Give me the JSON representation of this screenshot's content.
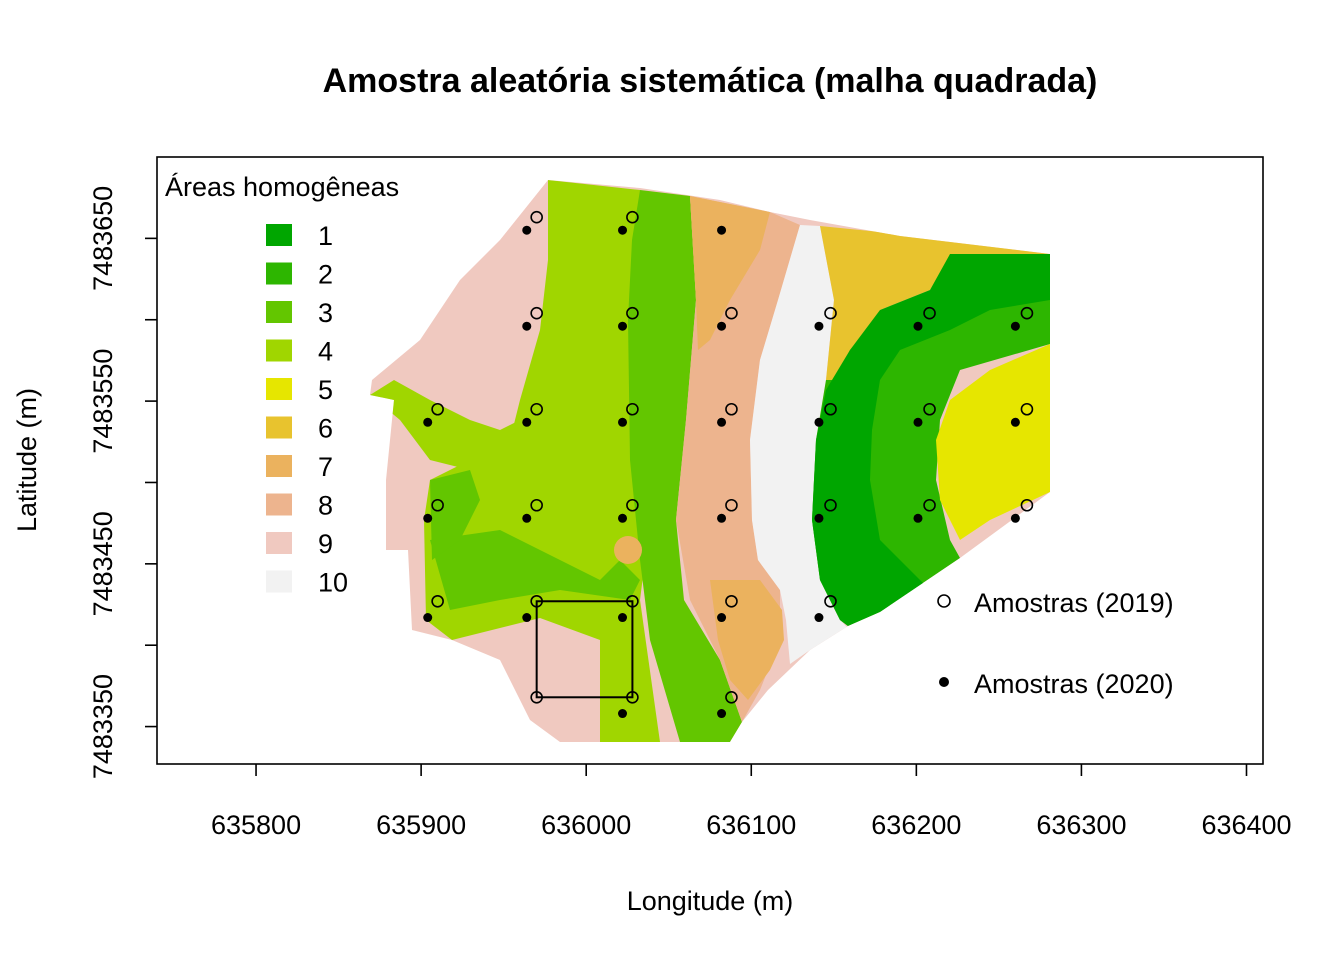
{
  "chart_data": {
    "type": "map",
    "title": "Amostra aleatória sistemática (malha quadrada)",
    "xlabel": "Longitude (m)",
    "ylabel": "Latitude (m)",
    "xlim": [
      635740,
      636410
    ],
    "ylim": [
      7483327,
      7483700
    ],
    "x_ticks": [
      635800,
      635900,
      636000,
      636100,
      636200,
      636300,
      636400
    ],
    "x_tick_labels": [
      "635800",
      "635900",
      "636000",
      "636100",
      "636200",
      "636300",
      "636400"
    ],
    "y_ticks": [
      7483350,
      7483400,
      7483450,
      7483500,
      7483550,
      7483600,
      7483650
    ],
    "y_tick_labels": [
      "7483350",
      "7483450",
      "7483550",
      "7483650"
    ],
    "zones_legend": {
      "title": "Áreas homogêneas",
      "entries": [
        {
          "label": "1",
          "color": "#00A600"
        },
        {
          "label": "2",
          "color": "#2DB600"
        },
        {
          "label": "3",
          "color": "#63C600"
        },
        {
          "label": "4",
          "color": "#A0D600"
        },
        {
          "label": "5",
          "color": "#E6E600"
        },
        {
          "label": "6",
          "color": "#E8C32E"
        },
        {
          "label": "7",
          "color": "#EBB25E"
        },
        {
          "label": "8",
          "color": "#EDB48E"
        },
        {
          "label": "9",
          "color": "#F0C9C0"
        },
        {
          "label": "10",
          "color": "#F2F2F2"
        }
      ]
    },
    "points_legend": [
      {
        "label": "Amostras (2019)",
        "marker": "open-circle"
      },
      {
        "label": "Amostras (2020)",
        "marker": "filled-dot"
      }
    ],
    "samples_2019": [
      [
        635970,
        7483663
      ],
      [
        636028,
        7483663
      ],
      [
        635970,
        7483604
      ],
      [
        636028,
        7483604
      ],
      [
        636088,
        7483604
      ],
      [
        636148,
        7483604
      ],
      [
        636208,
        7483604
      ],
      [
        636267,
        7483604
      ],
      [
        635910,
        7483545
      ],
      [
        635970,
        7483545
      ],
      [
        636028,
        7483545
      ],
      [
        636088,
        7483545
      ],
      [
        636148,
        7483545
      ],
      [
        636208,
        7483545
      ],
      [
        636267,
        7483545
      ],
      [
        635910,
        7483486
      ],
      [
        635970,
        7483486
      ],
      [
        636028,
        7483486
      ],
      [
        636088,
        7483486
      ],
      [
        636148,
        7483486
      ],
      [
        636208,
        7483486
      ],
      [
        636267,
        7483486
      ],
      [
        635910,
        7483427
      ],
      [
        635970,
        7483427
      ],
      [
        636028,
        7483427
      ],
      [
        636088,
        7483427
      ],
      [
        636148,
        7483427
      ],
      [
        635970,
        7483368
      ],
      [
        636028,
        7483368
      ],
      [
        636088,
        7483368
      ]
    ],
    "samples_2020": [
      [
        635964,
        7483655
      ],
      [
        636022,
        7483655
      ],
      [
        636082,
        7483655
      ],
      [
        635964,
        7483596
      ],
      [
        636022,
        7483596
      ],
      [
        636082,
        7483596
      ],
      [
        636141,
        7483596
      ],
      [
        636201,
        7483596
      ],
      [
        636260,
        7483596
      ],
      [
        635904,
        7483537
      ],
      [
        635964,
        7483537
      ],
      [
        636022,
        7483537
      ],
      [
        636082,
        7483537
      ],
      [
        636141,
        7483537
      ],
      [
        636201,
        7483537
      ],
      [
        636260,
        7483537
      ],
      [
        635904,
        7483478
      ],
      [
        635964,
        7483478
      ],
      [
        636022,
        7483478
      ],
      [
        636082,
        7483478
      ],
      [
        636141,
        7483478
      ],
      [
        636201,
        7483478
      ],
      [
        636260,
        7483478
      ],
      [
        635904,
        7483417
      ],
      [
        635964,
        7483417
      ],
      [
        636022,
        7483417
      ],
      [
        636082,
        7483417
      ],
      [
        636141,
        7483417
      ],
      [
        636022,
        7483358
      ],
      [
        636082,
        7483358
      ]
    ],
    "grid_cell": {
      "x": [
        635970,
        636028
      ],
      "y": [
        7483368,
        7483427
      ]
    }
  }
}
